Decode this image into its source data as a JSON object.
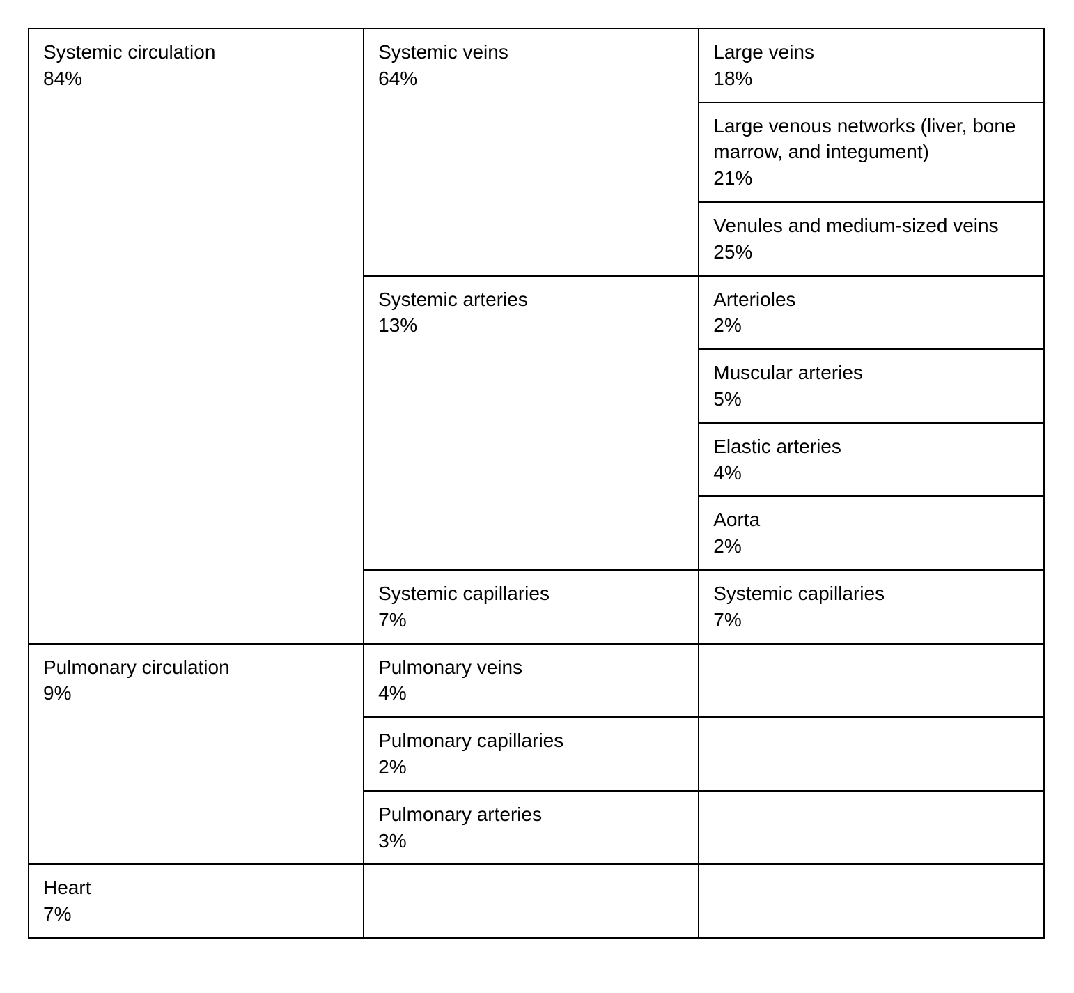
{
  "table": {
    "type": "table",
    "columns": 3,
    "border_color": "#000000",
    "border_width": 2,
    "background_color": "#ffffff",
    "text_color": "#000000",
    "font_size_pt": 21,
    "font_family": "Arial, Helvetica, sans-serif",
    "column_widths_pct": [
      33,
      33,
      34
    ],
    "rows": [
      {
        "c1": {
          "label": "Systemic circulation",
          "value": "84%",
          "rowspan": 8
        },
        "c2": {
          "label": "Systemic veins",
          "value": "64%",
          "rowspan": 3
        },
        "c3": {
          "label": "Large veins",
          "value": "18%"
        }
      },
      {
        "c3": {
          "label": "Large venous networks (liver, bone marrow, and integument)",
          "value": "21%"
        }
      },
      {
        "c3": {
          "label": "Venules and medium-sized veins",
          "value": "25%"
        }
      },
      {
        "c2": {
          "label": "Systemic arteries",
          "value": "13%",
          "rowspan": 4
        },
        "c3": {
          "label": "Arterioles",
          "value": "2%"
        }
      },
      {
        "c3": {
          "label": "Muscular arteries",
          "value": "5%"
        }
      },
      {
        "c3": {
          "label": "Elastic arteries",
          "value": "4%"
        }
      },
      {
        "c3": {
          "label": "Aorta",
          "value": "2%"
        }
      },
      {
        "c2": {
          "label": "Systemic capillaries",
          "value": "7%"
        },
        "c3": {
          "label": "Systemic capillaries",
          "value": "7%"
        }
      },
      {
        "c1": {
          "label": "Pulmonary circulation",
          "value": "9%",
          "rowspan": 3
        },
        "c2": {
          "label": "Pulmonary veins",
          "value": "4%"
        },
        "c3": {
          "label": "",
          "value": ""
        }
      },
      {
        "c2": {
          "label": "Pulmonary capillaries",
          "value": "2%"
        },
        "c3": {
          "label": "",
          "value": ""
        }
      },
      {
        "c2": {
          "label": "Pulmonary arteries",
          "value": "3%"
        },
        "c3": {
          "label": "",
          "value": ""
        }
      },
      {
        "c1": {
          "label": "Heart",
          "value": "7%"
        },
        "c2": {
          "label": "",
          "value": ""
        },
        "c3": {
          "label": "",
          "value": ""
        }
      }
    ]
  }
}
